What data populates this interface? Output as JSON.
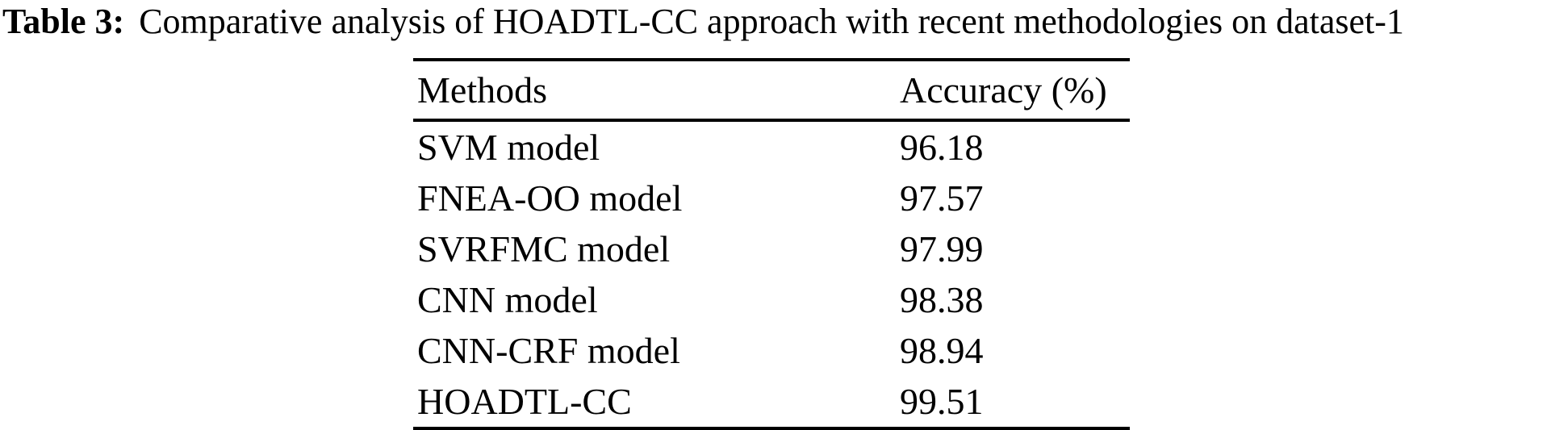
{
  "caption": {
    "label": "Table 3:",
    "text": "Comparative analysis of HOADTL-CC approach with recent methodologies on dataset-1"
  },
  "table": {
    "columns": [
      "Methods",
      "Accuracy (%)"
    ],
    "rows": [
      {
        "method": "SVM model",
        "accuracy": "96.18"
      },
      {
        "method": "FNEA-OO model",
        "accuracy": "97.57"
      },
      {
        "method": "SVRFMC model",
        "accuracy": "97.99"
      },
      {
        "method": "CNN model",
        "accuracy": "98.38"
      },
      {
        "method": "CNN-CRF model",
        "accuracy": "98.94"
      },
      {
        "method": "HOADTL-CC",
        "accuracy": "99.51"
      }
    ]
  },
  "colors": {
    "text": "#000000",
    "background": "#ffffff",
    "rule": "#000000"
  }
}
